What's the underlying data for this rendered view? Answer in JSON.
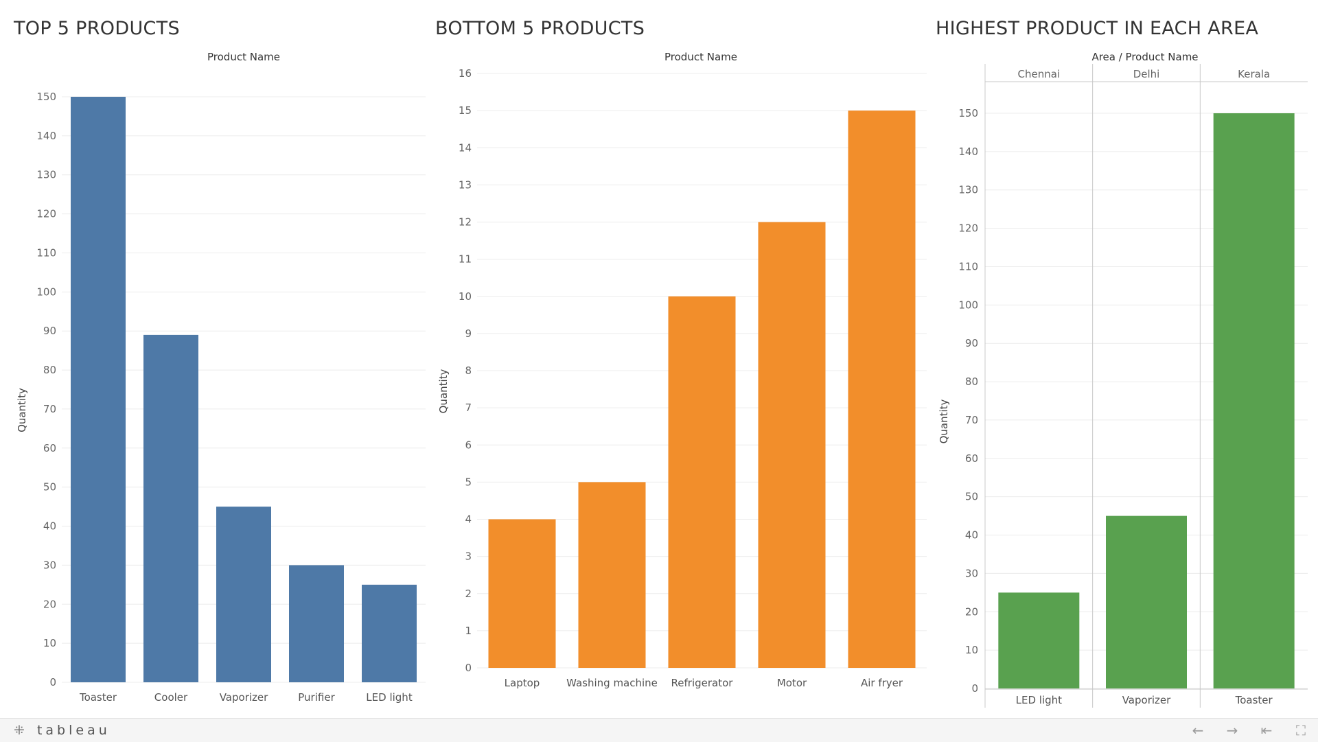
{
  "panels": [
    {
      "title": "TOP 5 PRODUCTS"
    },
    {
      "title": "BOTTOM 5 PRODUCTS"
    },
    {
      "title": "HIGHEST PRODUCT IN EACH AREA"
    }
  ],
  "colors": {
    "top": "#4e79a7",
    "bottom": "#f28e2b",
    "area": "#59a14f"
  },
  "footer": {
    "brand": "tableau",
    "brand_icon": "tableau-plus-icon",
    "nav": [
      {
        "name": "undo-icon",
        "glyph": "←"
      },
      {
        "name": "redo-icon",
        "glyph": "→"
      },
      {
        "name": "revert-icon",
        "glyph": "⇤"
      },
      {
        "name": "fullscreen-icon",
        "glyph": "⛶"
      }
    ]
  },
  "chart_data": [
    {
      "type": "bar",
      "title": "TOP 5 PRODUCTS",
      "header": "Product Name",
      "ylabel": "Quantity",
      "categories": [
        "Toaster",
        "Cooler",
        "Vaporizer",
        "Purifier",
        "LED light"
      ],
      "values": [
        150,
        89,
        45,
        30,
        25
      ],
      "ylim": [
        0,
        150
      ],
      "yticks": [
        0,
        10,
        20,
        30,
        40,
        50,
        60,
        70,
        80,
        90,
        100,
        110,
        120,
        130,
        140,
        150
      ],
      "grid": true
    },
    {
      "type": "bar",
      "title": "BOTTOM 5 PRODUCTS",
      "header": "Product Name",
      "ylabel": "Quantity",
      "categories": [
        "Laptop",
        "Washing machine",
        "Refrigerator",
        "Motor",
        "Air fryer"
      ],
      "values": [
        4,
        5,
        10,
        12,
        15
      ],
      "ylim": [
        0,
        16
      ],
      "yticks": [
        0,
        1,
        2,
        3,
        4,
        5,
        6,
        7,
        8,
        9,
        10,
        11,
        12,
        13,
        14,
        15,
        16
      ],
      "grid": true
    },
    {
      "type": "bar",
      "title": "HIGHEST PRODUCT IN EACH AREA",
      "header": "Area / Product Name",
      "ylabel": "Quantity",
      "areas": [
        "Chennai",
        "Delhi",
        "Kerala"
      ],
      "categories": [
        "LED light",
        "Vaporizer",
        "Toaster"
      ],
      "values": [
        25,
        45,
        150
      ],
      "ylim": [
        0,
        150
      ],
      "yticks": [
        0,
        10,
        20,
        30,
        40,
        50,
        60,
        70,
        80,
        90,
        100,
        110,
        120,
        130,
        140,
        150
      ],
      "grid": true
    }
  ]
}
